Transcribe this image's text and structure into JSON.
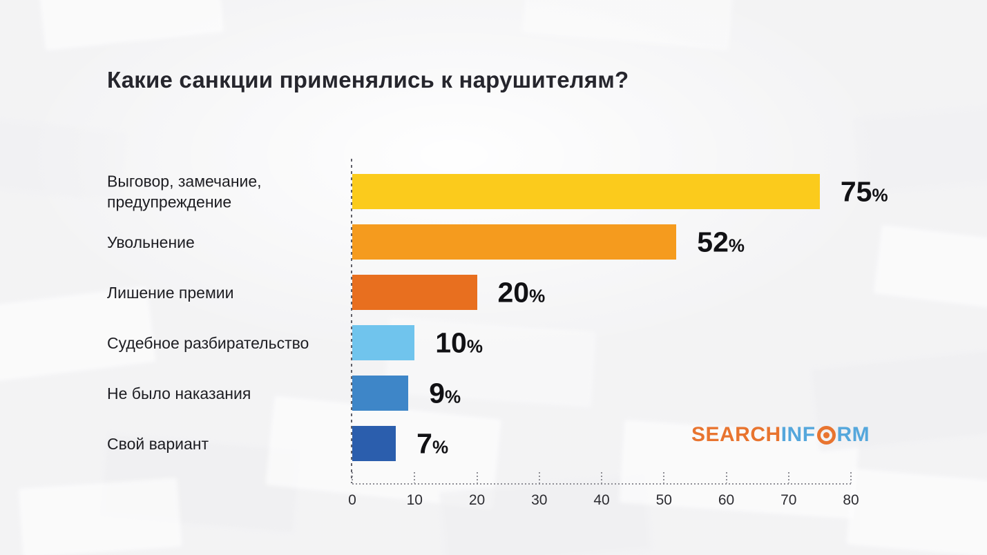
{
  "title": "Какие санкции применялись к нарушителям?",
  "chart_data": {
    "type": "bar",
    "orientation": "horizontal",
    "title": "Какие санкции применялись к нарушителям?",
    "categories": [
      "Выговор, замечание, предупреждение",
      "Увольнение",
      "Лишение премии",
      "Судебное разбирательство",
      "Не было наказания",
      "Свой вариант"
    ],
    "values": [
      75,
      52,
      20,
      10,
      9,
      7
    ],
    "value_suffix": "%",
    "bar_colors": [
      "#FBCB1C",
      "#F59B1E",
      "#E86F1F",
      "#70C4ED",
      "#3E86C8",
      "#2B5EAD"
    ],
    "xlabel": "",
    "ylabel": "",
    "xlim": [
      0,
      80
    ],
    "x_ticks": [
      "0",
      "10",
      "20",
      "30",
      "40",
      "50",
      "60",
      "70",
      "80"
    ],
    "grid": "off",
    "legend": "none"
  },
  "logo": {
    "part1": "SEARCH",
    "part2": "INF",
    "part3": "RM",
    "orange": "#E8742F",
    "blue": "#55A7DC"
  }
}
